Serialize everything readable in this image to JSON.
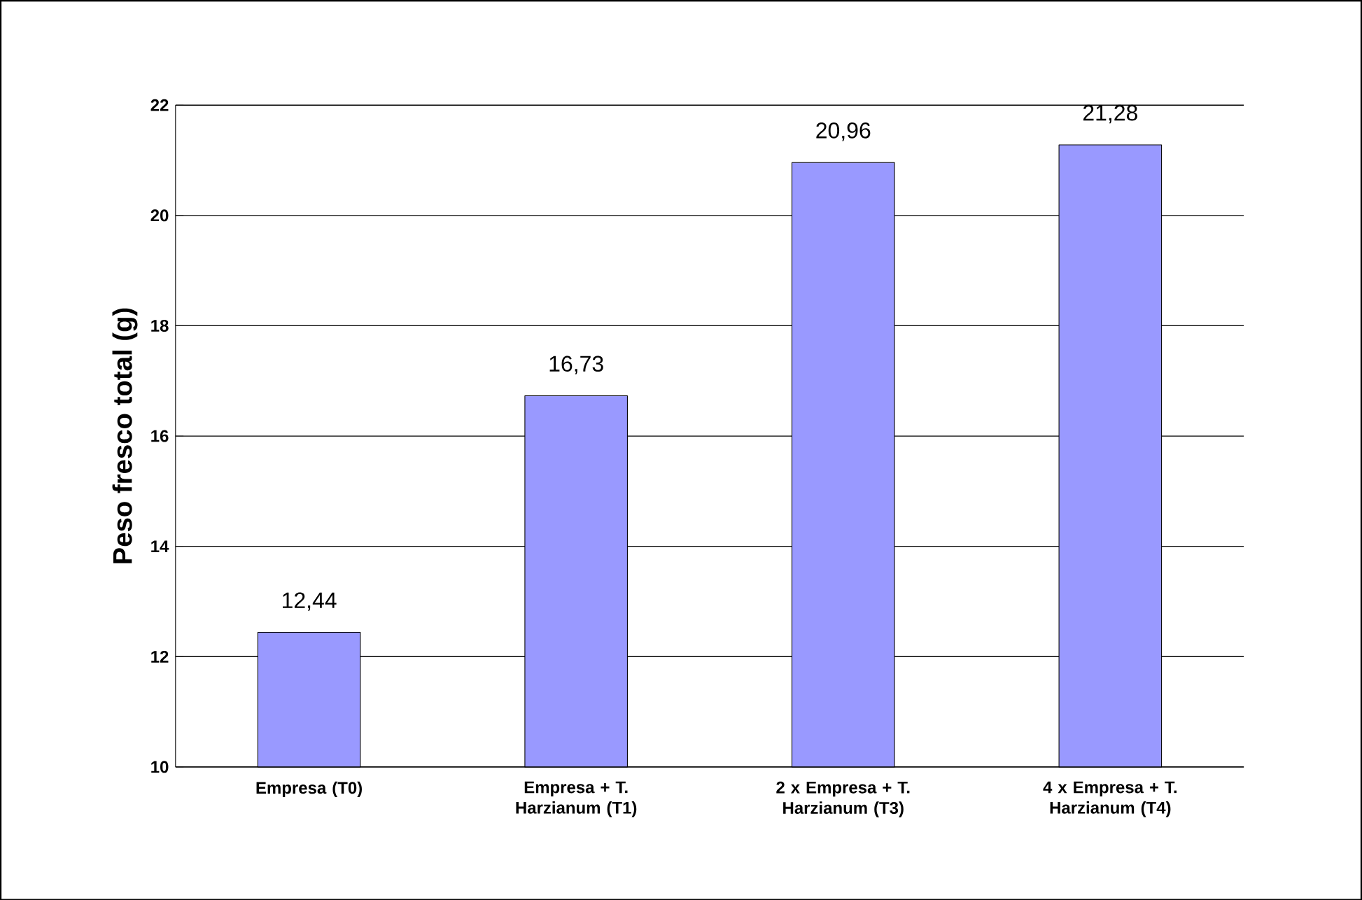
{
  "chart_data": {
    "type": "bar",
    "ylabel": "Peso fresco total (g)",
    "categories": [
      "Empresa (T0)",
      "Empresa + T. Harzianum (T1)",
      "2 x Empresa + T. Harzianum (T3)",
      "4 x Empresa + T. Harzianum (T4)"
    ],
    "values": [
      12.44,
      16.73,
      20.96,
      21.28
    ],
    "value_labels": [
      "12,44",
      "16,73",
      "20,96",
      "21,28"
    ],
    "color": "#9999ff",
    "ylim": [
      10,
      22
    ],
    "yticks": [
      10,
      12,
      14,
      16,
      18,
      20,
      22
    ],
    "grid": "y"
  }
}
